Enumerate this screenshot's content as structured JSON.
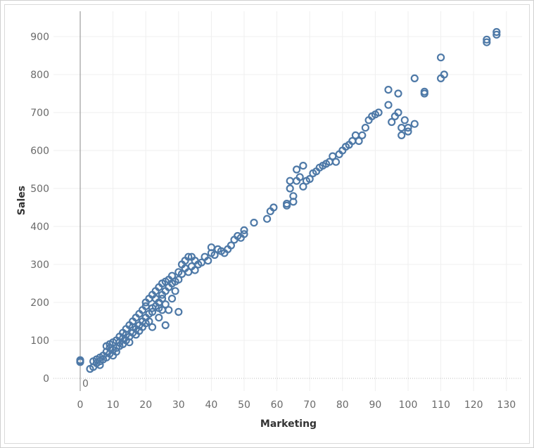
{
  "chart_data": {
    "type": "scatter",
    "title": "",
    "xlabel": "Marketing",
    "ylabel": "Sales",
    "xlim": [
      -8,
      134
    ],
    "ylim": [
      -25,
      965
    ],
    "xticks": [
      "0",
      "10",
      "20",
      "30",
      "40",
      "50",
      "60",
      "70",
      "80",
      "90",
      "100",
      "110",
      "120",
      "130"
    ],
    "xtick_values": [
      0,
      10,
      20,
      30,
      40,
      50,
      60,
      70,
      80,
      90,
      100,
      110,
      120,
      130
    ],
    "yticks": [
      "0",
      "100",
      "200",
      "300",
      "400",
      "500",
      "600",
      "700",
      "800",
      "900"
    ],
    "ytick_values": [
      0,
      100,
      200,
      300,
      400,
      500,
      600,
      700,
      800,
      900
    ],
    "zero_annotation": "0",
    "grid": true,
    "marker_color": "#4e79a7",
    "series": [
      {
        "x": [
          0,
          0,
          0,
          3,
          4,
          4,
          5,
          5,
          6,
          6,
          6,
          7,
          7,
          8,
          8,
          8,
          9,
          9,
          9,
          10,
          10,
          10,
          11,
          11,
          11,
          12,
          12,
          12,
          13,
          13,
          13,
          14,
          14,
          14,
          15,
          15,
          15,
          16,
          16,
          16,
          17,
          17,
          17,
          18,
          18,
          18,
          19,
          19,
          19,
          20,
          20,
          20,
          20,
          21,
          21,
          21,
          22,
          22,
          22,
          22,
          23,
          23,
          23,
          24,
          24,
          24,
          24,
          25,
          25,
          25,
          25,
          26,
          26,
          26,
          26,
          27,
          27,
          27,
          28,
          28,
          28,
          29,
          29,
          30,
          30,
          30,
          31,
          31,
          32,
          32,
          33,
          33,
          34,
          34,
          35,
          35,
          36,
          37,
          38,
          39,
          40,
          40,
          41,
          42,
          43,
          44,
          45,
          46,
          47,
          48,
          49,
          50,
          50,
          53,
          57,
          58,
          59,
          63,
          63,
          64,
          64,
          65,
          65,
          66,
          66,
          67,
          68,
          68,
          69,
          70,
          71,
          72,
          73,
          74,
          75,
          76,
          77,
          78,
          79,
          80,
          81,
          82,
          83,
          84,
          85,
          86,
          87,
          88,
          89,
          90,
          91,
          94,
          94,
          95,
          96,
          97,
          97,
          98,
          98,
          99,
          100,
          100,
          102,
          102,
          105,
          105,
          110,
          110,
          111,
          124,
          124,
          127,
          127
        ],
        "y": [
          45,
          43,
          48,
          25,
          30,
          45,
          40,
          50,
          35,
          55,
          45,
          50,
          60,
          55,
          70,
          85,
          65,
          80,
          90,
          60,
          75,
          95,
          80,
          100,
          70,
          85,
          110,
          95,
          90,
          120,
          105,
          100,
          130,
          115,
          110,
          140,
          95,
          120,
          150,
          135,
          130,
          160,
          115,
          140,
          170,
          125,
          150,
          180,
          135,
          160,
          190,
          200,
          145,
          170,
          210,
          150,
          175,
          185,
          220,
          135,
          190,
          210,
          230,
          200,
          240,
          160,
          185,
          210,
          250,
          180,
          220,
          140,
          230,
          255,
          195,
          240,
          260,
          180,
          250,
          270,
          210,
          255,
          230,
          260,
          280,
          175,
          275,
          300,
          290,
          310,
          280,
          320,
          295,
          320,
          285,
          310,
          300,
          305,
          320,
          310,
          330,
          345,
          325,
          340,
          335,
          330,
          340,
          350,
          365,
          375,
          370,
          380,
          390,
          410,
          420,
          440,
          450,
          455,
          460,
          500,
          520,
          465,
          480,
          520,
          550,
          530,
          505,
          560,
          520,
          525,
          540,
          545,
          555,
          560,
          565,
          570,
          585,
          570,
          590,
          600,
          610,
          615,
          625,
          640,
          625,
          640,
          660,
          680,
          690,
          695,
          700,
          720,
          760,
          675,
          690,
          700,
          750,
          640,
          660,
          680,
          650,
          660,
          790,
          670,
          750,
          755,
          790,
          845,
          800,
          885,
          892,
          905,
          912
        ]
      }
    ]
  }
}
